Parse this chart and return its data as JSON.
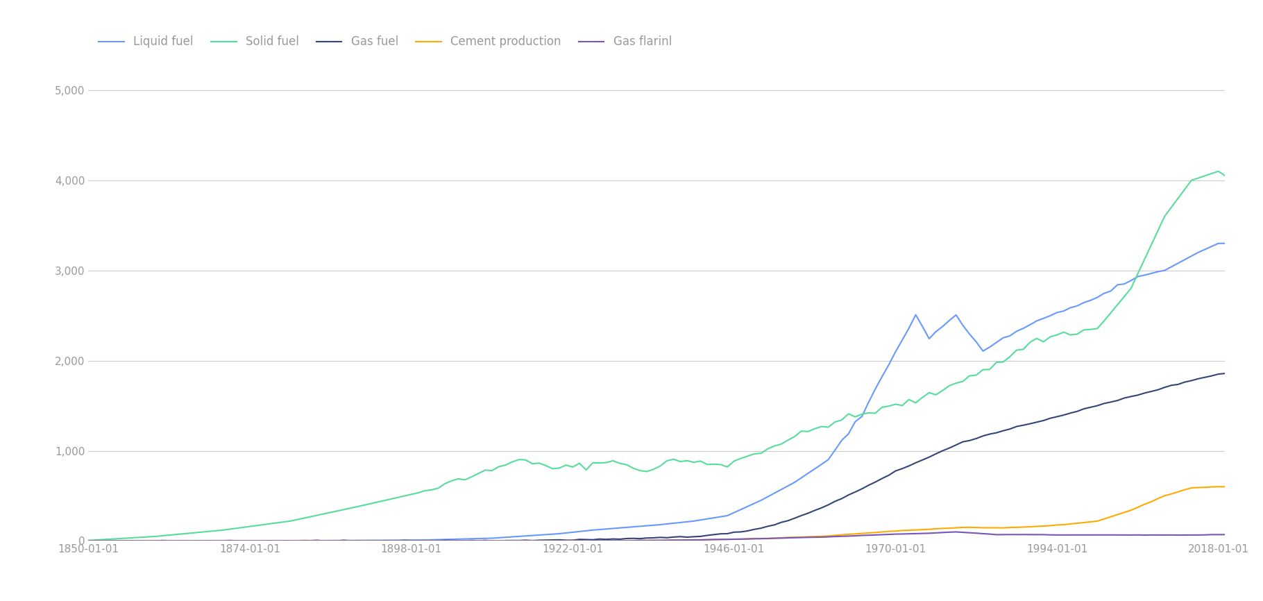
{
  "legend_labels": [
    "Liquid fuel",
    "Solid fuel",
    "Gas fuel",
    "Cement production",
    "Gas flarinl"
  ],
  "line_colors": [
    "#6699ff",
    "#55dd99",
    "#334477",
    "#ffaa00",
    "#7755bb"
  ],
  "line_widths": [
    1.5,
    1.5,
    1.5,
    1.5,
    1.5
  ],
  "bg_color": "#ffffff",
  "grid_color": "#cccccc",
  "tick_color": "#aaaaaa",
  "label_color": "#999999",
  "ylim": [
    0,
    5200
  ],
  "yticks": [
    0,
    1000,
    2000,
    3000,
    4000,
    5000
  ],
  "x_start": 1850,
  "x_end": 2019,
  "xtick_years": [
    1850,
    1874,
    1898,
    1922,
    1946,
    1970,
    1994,
    2018
  ],
  "xtick_labels": [
    "1850-01-01",
    "1874-01-01",
    "1898-01-01",
    "1922-01-01",
    "1946-01-01",
    "1970-01-01",
    "1994-01-01",
    "2018-01-01"
  ]
}
